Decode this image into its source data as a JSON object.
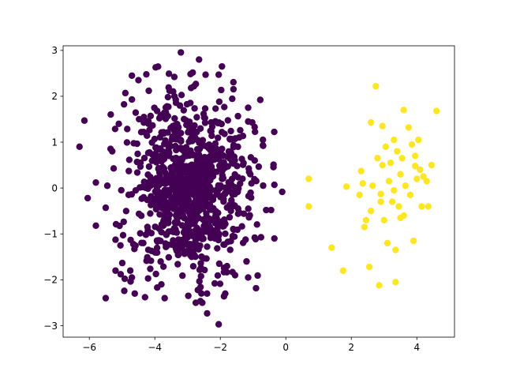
{
  "chart_data": {
    "type": "scatter",
    "title": "",
    "xlabel": "",
    "ylabel": "",
    "xlim": [
      -6.8,
      5.15
    ],
    "ylim": [
      -3.25,
      3.1
    ],
    "x_ticks": [
      -6,
      -4,
      -2,
      0,
      2,
      4
    ],
    "x_tick_labels": [
      "−6",
      "−4",
      "−2",
      "0",
      "2",
      "4"
    ],
    "y_ticks": [
      -3,
      -2,
      -1,
      0,
      1,
      2,
      3
    ],
    "y_tick_labels": [
      "−3",
      "−2",
      "−1",
      "0",
      "1",
      "2",
      "3"
    ],
    "grid": false,
    "legend": "none",
    "series": [
      {
        "color": "#440154",
        "generator": {
          "distribution": "normal",
          "count": 950,
          "x_mean": -3.0,
          "x_std": 0.9,
          "y_mean": 0.0,
          "y_std": 0.95
        },
        "points": [
          [
            -6.3,
            0.9
          ],
          [
            -6.15,
            1.47
          ],
          [
            -6.05,
            -0.22
          ],
          [
            -5.8,
            0.12
          ],
          [
            -5.8,
            -0.82
          ],
          [
            -5.5,
            -2.4
          ],
          [
            -5.5,
            -0.43
          ],
          [
            -5.45,
            0.05
          ],
          [
            -4.9,
            2.07
          ],
          [
            -4.7,
            2.45
          ],
          [
            -4.7,
            1.93
          ],
          [
            -4.3,
            -2.38
          ],
          [
            -3.7,
            -2.4
          ],
          [
            -3.55,
            2.12
          ],
          [
            -2.65,
            2.8
          ],
          [
            -2.45,
            2.47
          ],
          [
            -2.05,
            2.47
          ],
          [
            -1.95,
            2.65
          ],
          [
            -2.55,
            -2.5
          ],
          [
            -2.75,
            -2.5
          ],
          [
            -2.05,
            -2.97
          ],
          [
            -1.85,
            -2.3
          ],
          [
            -1.15,
            1.75
          ],
          [
            -1.15,
            1.45
          ],
          [
            -0.7,
            1.05
          ],
          [
            -0.7,
            0.93
          ],
          [
            -0.35,
            0.07
          ],
          [
            -0.35,
            -1.1
          ],
          [
            -0.45,
            -0.48
          ],
          [
            -1.15,
            -1.95
          ],
          [
            -1.2,
            -1.6
          ],
          [
            -1.55,
            -1.9
          ],
          [
            -5.2,
            -1.8
          ],
          [
            -4.7,
            -1.95
          ],
          [
            -5.05,
            -1.25
          ],
          [
            -4.75,
            -1.8
          ],
          [
            -3.8,
            -2.1
          ],
          [
            -0.6,
            -0.48
          ],
          [
            -0.95,
            -1.08
          ],
          [
            -1.05,
            0.1
          ],
          [
            -0.95,
            0.6
          ],
          [
            -5.1,
            1.4
          ],
          [
            -5.3,
            0.8
          ],
          [
            -4.5,
            2.35
          ],
          [
            -3.4,
            2.0
          ]
        ]
      },
      {
        "color": "#fde725",
        "points": [
          [
            0.7,
            0.2
          ],
          [
            0.7,
            -0.4
          ],
          [
            1.4,
            -1.3
          ],
          [
            1.75,
            -1.8
          ],
          [
            1.85,
            0.03
          ],
          [
            2.3,
            0.37
          ],
          [
            2.35,
            0.1
          ],
          [
            2.4,
            -0.85
          ],
          [
            2.45,
            -0.7
          ],
          [
            2.55,
            -1.72
          ],
          [
            2.6,
            -0.5
          ],
          [
            2.6,
            1.43
          ],
          [
            2.65,
            0.05
          ],
          [
            2.75,
            2.22
          ],
          [
            2.8,
            0.65
          ],
          [
            2.85,
            -2.12
          ],
          [
            2.9,
            -0.13
          ],
          [
            2.9,
            -0.3
          ],
          [
            2.95,
            0.5
          ],
          [
            2.95,
            1.35
          ],
          [
            3.0,
            -0.7
          ],
          [
            3.05,
            0.9
          ],
          [
            3.1,
            -1.2
          ],
          [
            3.15,
            0.15
          ],
          [
            3.2,
            0.55
          ],
          [
            3.25,
            -0.3
          ],
          [
            3.3,
            -0.05
          ],
          [
            3.3,
            1.05
          ],
          [
            3.35,
            -2.05
          ],
          [
            3.35,
            -1.35
          ],
          [
            3.4,
            0.8
          ],
          [
            3.45,
            -0.4
          ],
          [
            3.5,
            0.3
          ],
          [
            3.5,
            -0.65
          ],
          [
            3.55,
            0.65
          ],
          [
            3.6,
            -0.6
          ],
          [
            3.6,
            1.7
          ],
          [
            3.65,
            0.05
          ],
          [
            3.75,
            1.32
          ],
          [
            3.8,
            -0.15
          ],
          [
            3.85,
            0.95
          ],
          [
            3.9,
            -1.15
          ],
          [
            3.95,
            0.7
          ],
          [
            4.0,
            0.2
          ],
          [
            4.05,
            1.05
          ],
          [
            4.1,
            0.4
          ],
          [
            4.15,
            -0.4
          ],
          [
            4.2,
            0.25
          ],
          [
            4.3,
            0.15
          ],
          [
            4.35,
            -0.4
          ],
          [
            4.45,
            0.5
          ],
          [
            4.6,
            1.68
          ],
          [
            2.25,
            -0.15
          ],
          [
            3.95,
            0.48
          ]
        ]
      }
    ]
  }
}
